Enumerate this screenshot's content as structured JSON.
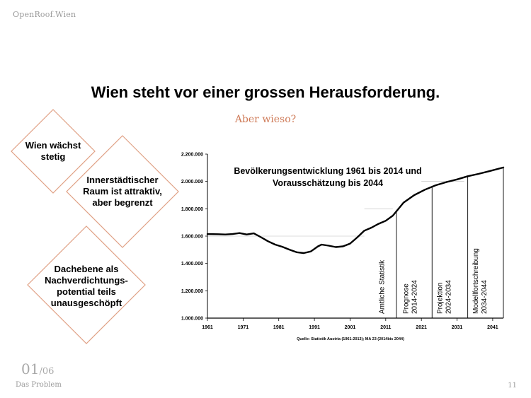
{
  "header": {
    "brand": "OpenRoof.Wien"
  },
  "slide": {
    "title": "Wien steht vor einer grossen Herausforderung.",
    "subtitle": "Aber wieso?"
  },
  "diamonds": [
    {
      "lines": [
        "Wien wächst",
        "stetig"
      ]
    },
    {
      "lines": [
        "Innerstädtischer",
        "Raum ist attraktiv,",
        "aber begrenzt"
      ]
    },
    {
      "lines": [
        "Dachebene als",
        "Nachverdichtungs-",
        "potential teils",
        "unausgeschöpft"
      ]
    }
  ],
  "colors": {
    "accent": "#e0a185",
    "subtitle": "#cf7b58",
    "gray": "#9a9a9a"
  },
  "footer": {
    "page_current": "01",
    "page_total": "06",
    "section": "Das Problem",
    "slide_number": "11"
  },
  "chart_data": {
    "type": "line",
    "title": "Bevölkerungsentwicklung 1961 bis 2014 und Vorausschätzung bis 2044",
    "title_lines": [
      "Bevölkerungsentwicklung 1961 bis 2014 und",
      "Vorausschätzung bis 2044"
    ],
    "source": "Quelle: Statistik Austria (1961-2013); MA 23 (2014bis 2044)",
    "x_ticks": [
      1961,
      1971,
      1981,
      1991,
      2001,
      2011,
      2021,
      2031,
      2041
    ],
    "y_ticks": [
      "1.000.000",
      "1.200.000",
      "1.400.000",
      "1.600.000",
      "1.800.000",
      "2.000.000",
      "2.200.000"
    ],
    "y_tick_values": [
      1000000,
      1200000,
      1400000,
      1600000,
      1800000,
      2000000,
      2200000
    ],
    "xlim": [
      1961,
      2044
    ],
    "ylim": [
      1000000,
      2200000
    ],
    "grid": "partial horizontal",
    "series": [
      {
        "x": [
          1961,
          1964,
          1966,
          1968,
          1970,
          1972,
          1974,
          1976,
          1978,
          1980,
          1982,
          1984,
          1986,
          1988,
          1990,
          1992,
          1993,
          1995,
          1997,
          1999,
          2001,
          2003,
          2005,
          2007,
          2009,
          2011,
          2013,
          2016,
          2019,
          2022,
          2025,
          2028,
          2031,
          2034,
          2037,
          2040,
          2044
        ],
        "y": [
          1615000,
          1614000,
          1612000,
          1615000,
          1622000,
          1612000,
          1620000,
          1592000,
          1562000,
          1538000,
          1522000,
          1501000,
          1482000,
          1476000,
          1488000,
          1525000,
          1538000,
          1530000,
          1520000,
          1525000,
          1545000,
          1590000,
          1640000,
          1662000,
          1690000,
          1712000,
          1750000,
          1845000,
          1900000,
          1940000,
          1972000,
          1995000,
          2015000,
          2038000,
          2055000,
          2075000,
          2102000
        ]
      }
    ],
    "phases": [
      {
        "label": "Amtliche Statistik",
        "start": 2005,
        "end": 2014
      },
      {
        "label": "Prognose 2014-2024",
        "start": 2014,
        "end": 2024
      },
      {
        "label": "Projektion 2024-2034",
        "start": 2024,
        "end": 2034
      },
      {
        "label": "Modellfortschreibung 2034-2044",
        "start": 2034,
        "end": 2044
      }
    ],
    "phase_label_lines": [
      [
        "Amtliche Statistik"
      ],
      [
        "Prognose",
        "2014-2024"
      ],
      [
        "Projektion",
        "2024-2034"
      ],
      [
        "Modellfortschreibung",
        "2034-2044"
      ]
    ]
  }
}
